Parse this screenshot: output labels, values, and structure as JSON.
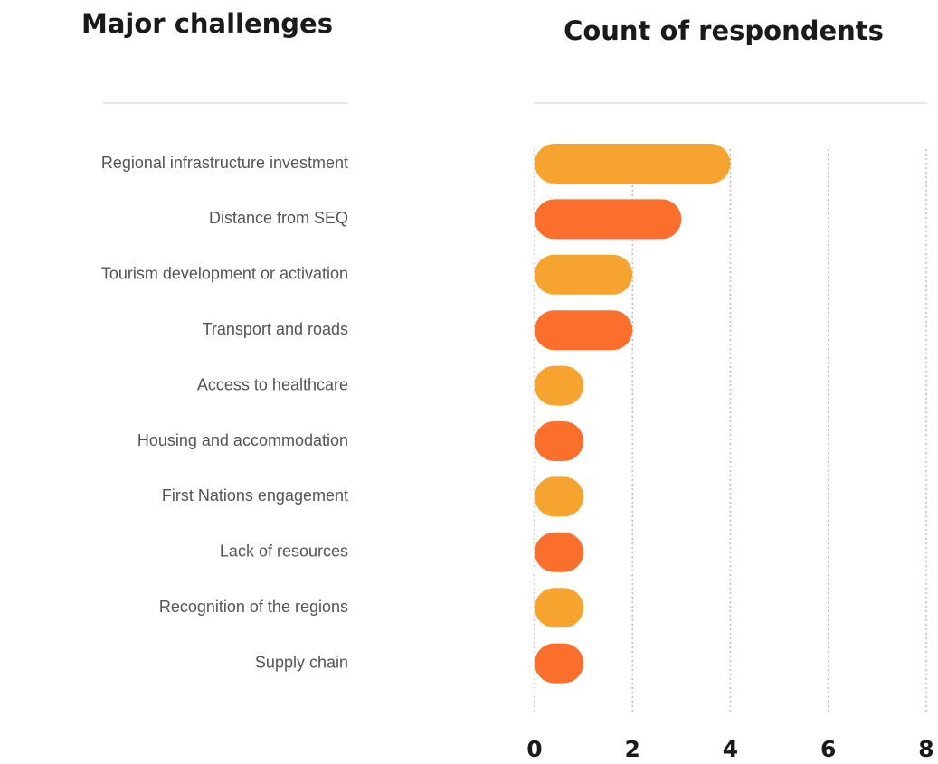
{
  "chart_data": {
    "type": "bar",
    "orientation": "horizontal",
    "category_header": "Major challenges",
    "value_header": "Count of respondents",
    "categories": [
      "Regional infrastructure investment",
      "Distance from SEQ",
      "Tourism development or activation",
      "Transport and roads",
      "Access to healthcare",
      "Housing and accommodation",
      "First Nations engagement",
      "Lack of resources",
      "Recognition of the regions",
      "Supply chain"
    ],
    "values": [
      4,
      3,
      2,
      2,
      1,
      1,
      1,
      1,
      1,
      1
    ],
    "colors": [
      "#f7a32f",
      "#fb6f2d",
      "#f7a32f",
      "#fb6f2d",
      "#f7a32f",
      "#fb6f2d",
      "#f7a32f",
      "#fb6f2d",
      "#f7a32f",
      "#fb6f2d"
    ],
    "xlim": [
      0,
      8
    ],
    "xticks": [
      0,
      2,
      4,
      6,
      8
    ],
    "grid": true
  }
}
